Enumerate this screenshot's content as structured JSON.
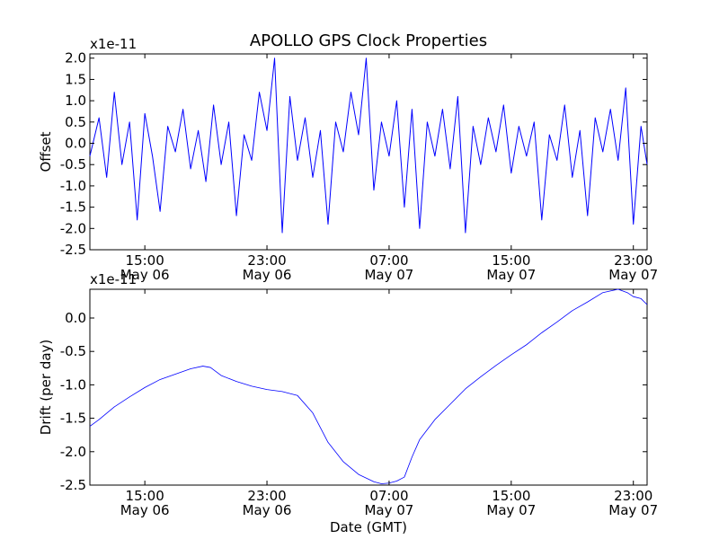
{
  "figure": {
    "title": "APOLLO GPS Clock Properties",
    "xlabel": "Date (GMT)"
  },
  "chart_data": [
    {
      "type": "line",
      "title": "APOLLO GPS Clock Properties",
      "xlabel": "",
      "ylabel": "Offset",
      "scale_label": "x1e-11",
      "xlim": [
        11.4,
        47.9
      ],
      "ylim": [
        -2.5,
        2.1
      ],
      "x_ticks": [
        {
          "x": 15,
          "time": "15:00",
          "date": "May 06"
        },
        {
          "x": 23,
          "time": "23:00",
          "date": "May 06"
        },
        {
          "x": 31,
          "time": "07:00",
          "date": "May 07"
        },
        {
          "x": 39,
          "time": "15:00",
          "date": "May 07"
        },
        {
          "x": 47,
          "time": "23:00",
          "date": "May 07"
        }
      ],
      "y_ticks": [
        -2.5,
        -2.0,
        -1.5,
        -1.0,
        -0.5,
        0.0,
        0.5,
        1.0,
        1.5,
        2.0
      ],
      "y_tick_labels": [
        "-2.5",
        "-2.0",
        "-1.5",
        "-1.0",
        "-0.5",
        "0.0",
        "0.5",
        "1.0",
        "1.5",
        "2.0"
      ],
      "series": [
        {
          "color": "#0000ff",
          "stroke_width": 1,
          "x": [
            11.4,
            12.0,
            12.5,
            13.0,
            13.5,
            14.0,
            14.5,
            15.0,
            15.5,
            16.0,
            16.5,
            17.0,
            17.5,
            18.0,
            18.5,
            19.0,
            19.5,
            20.0,
            20.5,
            21.0,
            21.5,
            22.0,
            22.5,
            23.0,
            23.5,
            24.0,
            24.5,
            25.0,
            25.5,
            26.0,
            26.5,
            27.0,
            27.5,
            28.0,
            28.5,
            29.0,
            29.5,
            30.0,
            30.5,
            31.0,
            31.5,
            32.0,
            32.5,
            33.0,
            33.5,
            34.0,
            34.5,
            35.0,
            35.5,
            36.0,
            36.5,
            37.0,
            37.5,
            38.0,
            38.5,
            39.0,
            39.5,
            40.0,
            40.5,
            41.0,
            41.5,
            42.0,
            42.5,
            43.0,
            43.5,
            44.0,
            44.5,
            45.0,
            45.5,
            46.0,
            46.5,
            47.0,
            47.5,
            47.9
          ],
          "y": [
            -0.3,
            0.6,
            -0.8,
            1.2,
            -0.5,
            0.5,
            -1.8,
            0.7,
            -0.3,
            -1.6,
            0.4,
            -0.2,
            0.8,
            -0.6,
            0.3,
            -0.9,
            0.9,
            -0.5,
            0.5,
            -1.7,
            0.2,
            -0.4,
            1.2,
            0.3,
            2.0,
            -2.1,
            1.1,
            -0.4,
            0.6,
            -0.8,
            0.3,
            -1.9,
            0.5,
            -0.2,
            1.2,
            0.2,
            2.0,
            -1.1,
            0.5,
            -0.3,
            1.0,
            -1.5,
            0.8,
            -2.0,
            0.5,
            -0.3,
            0.8,
            -0.6,
            1.1,
            -2.1,
            0.4,
            -0.5,
            0.6,
            -0.2,
            0.9,
            -0.7,
            0.4,
            -0.3,
            0.5,
            -1.8,
            0.2,
            -0.4,
            0.9,
            -0.8,
            0.3,
            -1.7,
            0.6,
            -0.2,
            0.8,
            -0.4,
            1.3,
            -1.9,
            0.4,
            -0.5
          ]
        }
      ]
    },
    {
      "type": "line",
      "title": "",
      "xlabel": "Date (GMT)",
      "ylabel": "Drift (per day)",
      "scale_label": "x1e-11",
      "xlim": [
        11.4,
        47.9
      ],
      "ylim": [
        -2.5,
        0.43
      ],
      "x_ticks": [
        {
          "x": 15,
          "time": "15:00",
          "date": "May 06"
        },
        {
          "x": 23,
          "time": "23:00",
          "date": "May 06"
        },
        {
          "x": 31,
          "time": "07:00",
          "date": "May 07"
        },
        {
          "x": 39,
          "time": "15:00",
          "date": "May 07"
        },
        {
          "x": 47,
          "time": "23:00",
          "date": "May 07"
        }
      ],
      "y_ticks": [
        -2.5,
        -2.0,
        -1.5,
        -1.0,
        -0.5,
        0.0
      ],
      "y_tick_labels": [
        "-2.5",
        "-2.0",
        "-1.5",
        "-1.0",
        "-0.5",
        "0.0"
      ],
      "series": [
        {
          "color": "#0000ff",
          "stroke_width": 0.8,
          "x": [
            11.4,
            12.0,
            13.0,
            14.0,
            15.0,
            16.0,
            17.0,
            18.0,
            18.8,
            19.3,
            20.0,
            21.0,
            22.0,
            23.0,
            24.0,
            25.0,
            26.0,
            27.0,
            28.0,
            29.0,
            30.0,
            30.5,
            31.0,
            31.5,
            32.0,
            32.5,
            33.0,
            33.5,
            34.0,
            35.0,
            36.0,
            37.0,
            38.0,
            39.0,
            40.0,
            41.0,
            42.0,
            43.0,
            44.0,
            45.0,
            46.0,
            46.6,
            47.0,
            47.5,
            47.9
          ],
          "y": [
            -1.62,
            -1.52,
            -1.33,
            -1.18,
            -1.04,
            -0.92,
            -0.84,
            -0.76,
            -0.72,
            -0.74,
            -0.86,
            -0.95,
            -1.02,
            -1.07,
            -1.1,
            -1.16,
            -1.42,
            -1.86,
            -2.15,
            -2.34,
            -2.45,
            -2.48,
            -2.47,
            -2.44,
            -2.38,
            -2.08,
            -1.82,
            -1.67,
            -1.52,
            -1.29,
            -1.06,
            -0.88,
            -0.71,
            -0.55,
            -0.4,
            -0.22,
            -0.06,
            0.11,
            0.24,
            0.38,
            0.43,
            0.38,
            0.32,
            0.29,
            0.2
          ]
        }
      ]
    }
  ]
}
